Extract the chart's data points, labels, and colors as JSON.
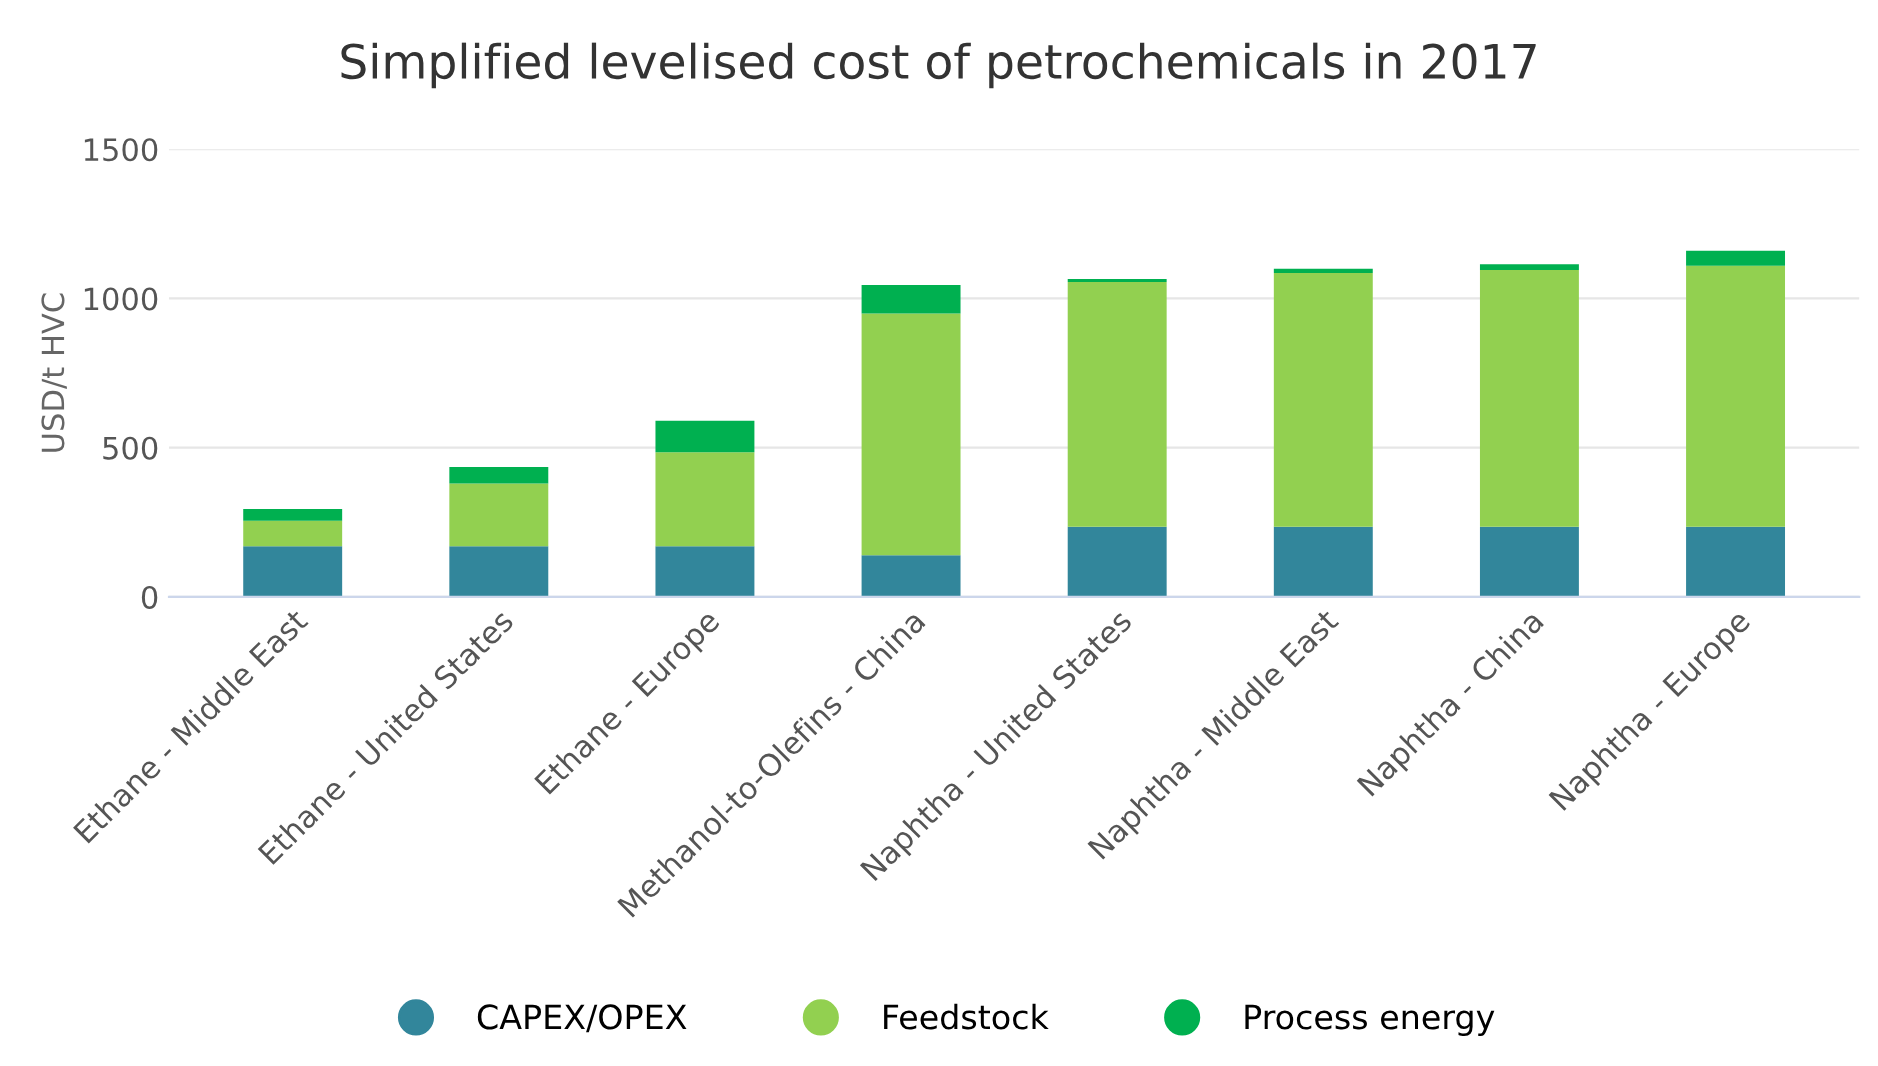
{
  "chart_data": {
    "type": "bar",
    "stacked": true,
    "title": "Simplified levelised cost of petrochemicals in 2017",
    "ylabel": "USD/t HVC",
    "categories": [
      "Ethane - Middle East",
      "Ethane - United States",
      "Ethane - Europe",
      "Methanol-to-Olefins - China",
      "Naphtha - United States",
      "Naphtha - Middle East",
      "Naphtha - China",
      "Naphtha - Europe"
    ],
    "series": [
      {
        "name": "CAPEX/OPEX",
        "color": "#32869b",
        "values": [
          170,
          170,
          170,
          140,
          235,
          235,
          235,
          235
        ]
      },
      {
        "name": "Feedstock",
        "color": "#92d050",
        "values": [
          85,
          210,
          315,
          810,
          820,
          850,
          860,
          875
        ]
      },
      {
        "name": "Process energy",
        "color": "#00b050",
        "values": [
          40,
          55,
          105,
          95,
          10,
          15,
          20,
          50
        ]
      }
    ],
    "ylim": [
      0,
      1500
    ],
    "yticks": [
      0,
      500,
      1000,
      1500
    ],
    "grid": "y",
    "legend": "bottom"
  }
}
